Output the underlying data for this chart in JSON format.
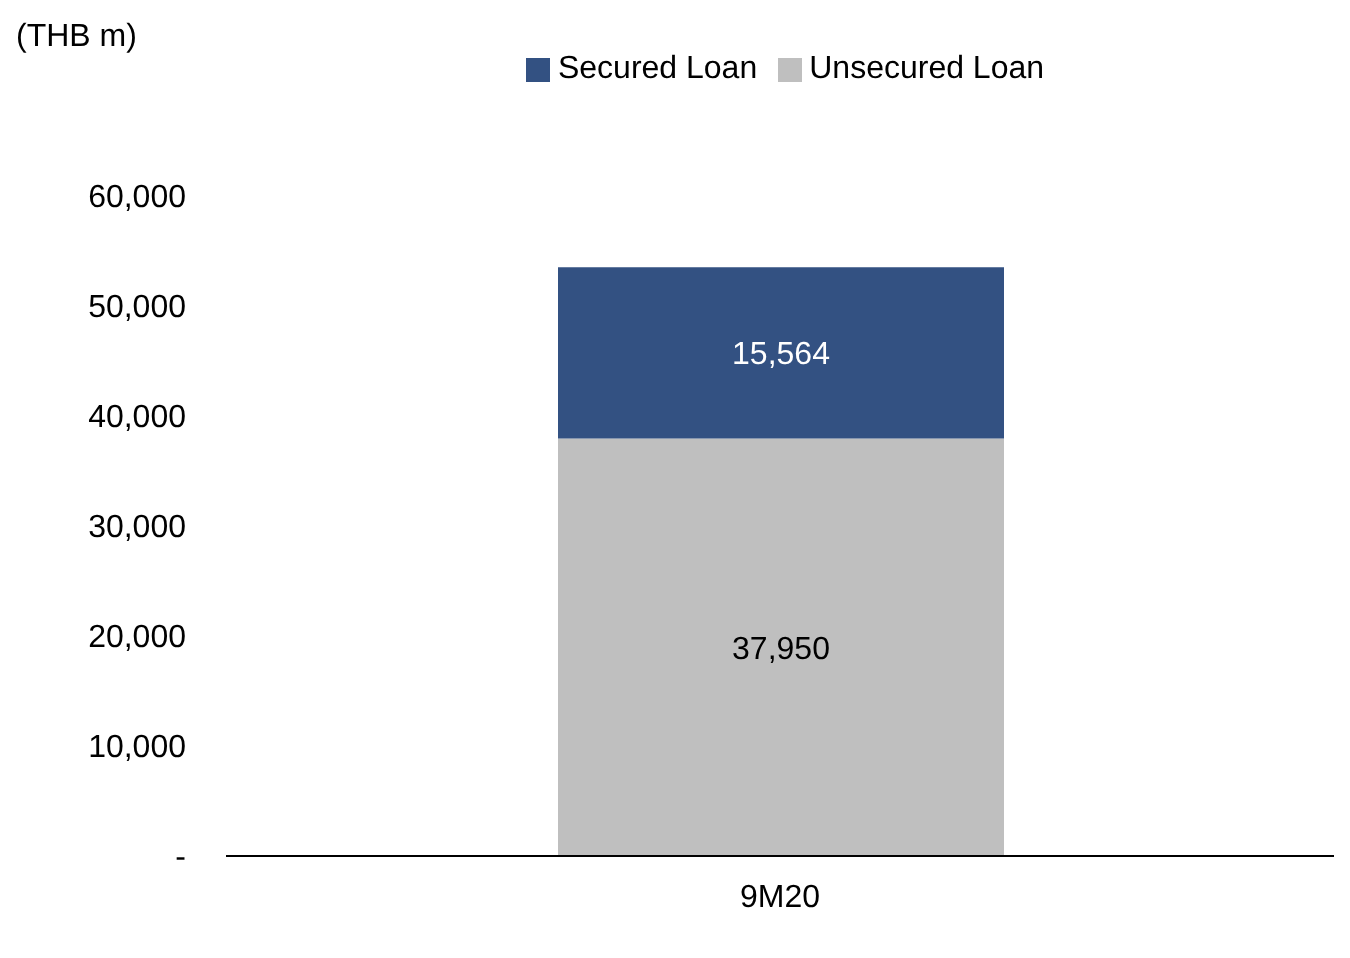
{
  "chart_data": {
    "type": "bar",
    "ylabel": "(THB m)",
    "stacked": true,
    "categories": [
      "9M20"
    ],
    "series": [
      {
        "name": "Unsecured Loan",
        "color": "#bfbfbf",
        "values": [
          37950
        ],
        "value_labels": [
          "37,950"
        ]
      },
      {
        "name": "Secured Loan",
        "color": "#335182",
        "values": [
          15564
        ],
        "value_labels": [
          "15,564"
        ]
      }
    ],
    "ylim": [
      0,
      60000
    ],
    "yticks": [
      {
        "value": 0,
        "label": "-"
      },
      {
        "value": 10000,
        "label": "10,000"
      },
      {
        "value": 20000,
        "label": "20,000"
      },
      {
        "value": 30000,
        "label": "30,000"
      },
      {
        "value": 40000,
        "label": "40,000"
      },
      {
        "value": 50000,
        "label": "50,000"
      },
      {
        "value": 60000,
        "label": "60,000"
      }
    ],
    "legend": "top",
    "grid": false
  }
}
